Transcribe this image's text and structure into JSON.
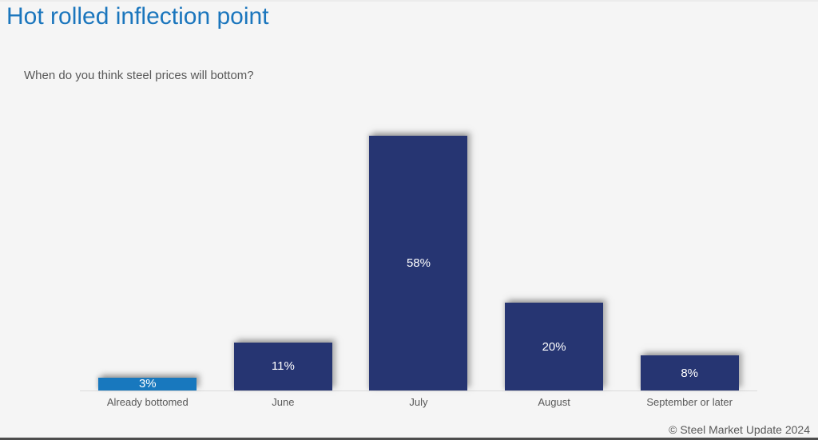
{
  "page": {
    "title": "Hot rolled inflection point",
    "question": "When do you think steel prices will bottom?",
    "footer_credit": "© Steel Market Update 2024"
  },
  "colors": {
    "title_blue": "#1b76bd",
    "bar_navy": "#263572",
    "bar_highlight_blue": "#1878be",
    "muted_text_gray": "#595959",
    "value_label_white": "#ffffff",
    "background": "#f5f5f5",
    "axis_line": "#dbdbdb"
  },
  "chart_data": {
    "type": "bar",
    "title": "Hot rolled inflection point",
    "subtitle": "When do you think steel prices will bottom?",
    "categories": [
      "Already bottomed",
      "June",
      "July",
      "August",
      "September or later"
    ],
    "values": [
      3,
      11,
      58,
      20,
      8
    ],
    "value_labels": [
      "3%",
      "11%",
      "58%",
      "20%",
      "8%"
    ],
    "bar_colors": [
      "#1878be",
      "#263572",
      "#263572",
      "#263572",
      "#263572"
    ],
    "xlabel": "",
    "ylabel": "",
    "ylim": [
      0,
      65
    ],
    "grid": false,
    "legend": false,
    "data_label_position": "inside-center",
    "annotations": [
      "© Steel Market Update 2024"
    ]
  }
}
